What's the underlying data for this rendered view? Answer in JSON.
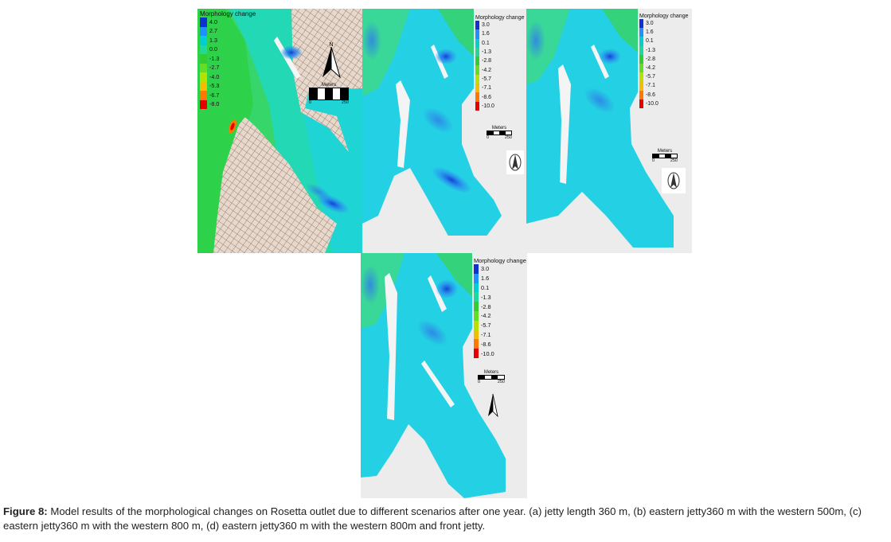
{
  "legend_a": {
    "title": "Morphology change",
    "levels": [
      "4.0",
      "2.7",
      "1.3",
      "0.0",
      "-1.3",
      "-2.7",
      "-4.0",
      "-5.3",
      "-6.7",
      "-8.0"
    ],
    "colors": [
      "#1030d0",
      "#1e90ff",
      "#00ced1",
      "#20d89a",
      "#33cc33",
      "#66dd22",
      "#b8e000",
      "#f0c000",
      "#ff7800",
      "#e60000"
    ]
  },
  "legend_bcd": {
    "title": "Morphology change",
    "levels": [
      "3.0",
      "1.6",
      "0.1",
      "-1.3",
      "-2.8",
      "-4.2",
      "-5.7",
      "-7.1",
      "-8.6",
      "-10.0"
    ],
    "colors": [
      "#1030d0",
      "#1e90ff",
      "#00ced1",
      "#20d89a",
      "#33cc33",
      "#66dd22",
      "#b8e000",
      "#f0c000",
      "#ff7800",
      "#e60000"
    ]
  },
  "scale": {
    "title": "Meters",
    "tick_start": "0",
    "tick_end": "250"
  },
  "north_label": "N",
  "caption": {
    "label": "Figure 8:",
    "text": " Model results of the morphological changes on Rosetta outlet due to different scenarios after one year. (a) jetty length 360 m, (b) eastern jetty360 m with the western 500m, (c) eastern jetty360 m with the western 800 m, (d) eastern jetty360 m with the western 800m and front jetty."
  },
  "colors": {
    "water": "#22d4e2",
    "land_grid": "#c8ab95",
    "background_gray": "#ececec"
  }
}
